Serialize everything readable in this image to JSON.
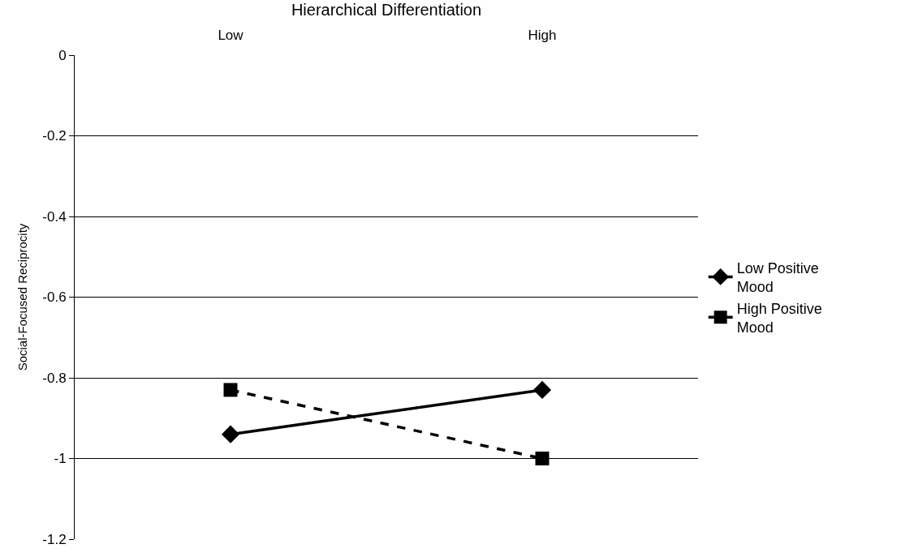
{
  "chart_data": {
    "type": "line",
    "xlabel": "Hierarchical Differentiation",
    "ylabel": "Social-Focused Reciprocity",
    "categories": [
      "Low",
      "High"
    ],
    "series": [
      {
        "name": "Low Positive Mood",
        "color": "#000000",
        "values": [
          -0.94,
          -0.83
        ],
        "marker": "diamond",
        "line_style": "solid"
      },
      {
        "name": "High Positive Mood",
        "color": "#000000",
        "values": [
          -0.83,
          -1.0
        ],
        "marker": "square",
        "line_style": "dashed"
      }
    ],
    "ylim": [
      -1.2,
      0
    ],
    "yticks": [
      -1.2,
      -1,
      -0.8,
      -0.6,
      -0.4,
      -0.2,
      0
    ],
    "grid": "y",
    "legend": "right"
  }
}
